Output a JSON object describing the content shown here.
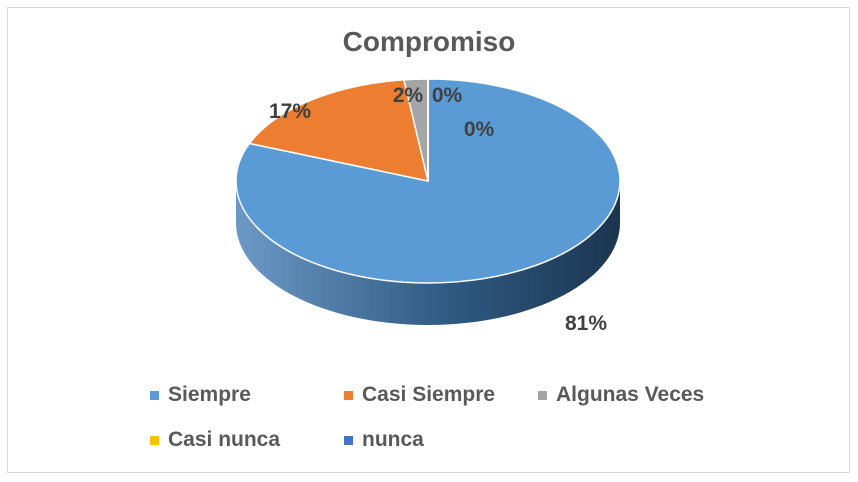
{
  "chart_data": {
    "type": "pie",
    "title": "Compromiso",
    "categories": [
      "Siempre",
      "Casi Siempre",
      "Algunas Veces",
      "Casi nunca",
      "nunca"
    ],
    "values": [
      81,
      17,
      2,
      0,
      0
    ],
    "labels": [
      "81%",
      "17%",
      "2%",
      "0%",
      "0%"
    ],
    "colors": [
      "#5B9BD5",
      "#ED7D31",
      "#A5A5A5",
      "#FFC000",
      "#4472C4"
    ],
    "legend_position": "bottom",
    "style": "3d"
  }
}
